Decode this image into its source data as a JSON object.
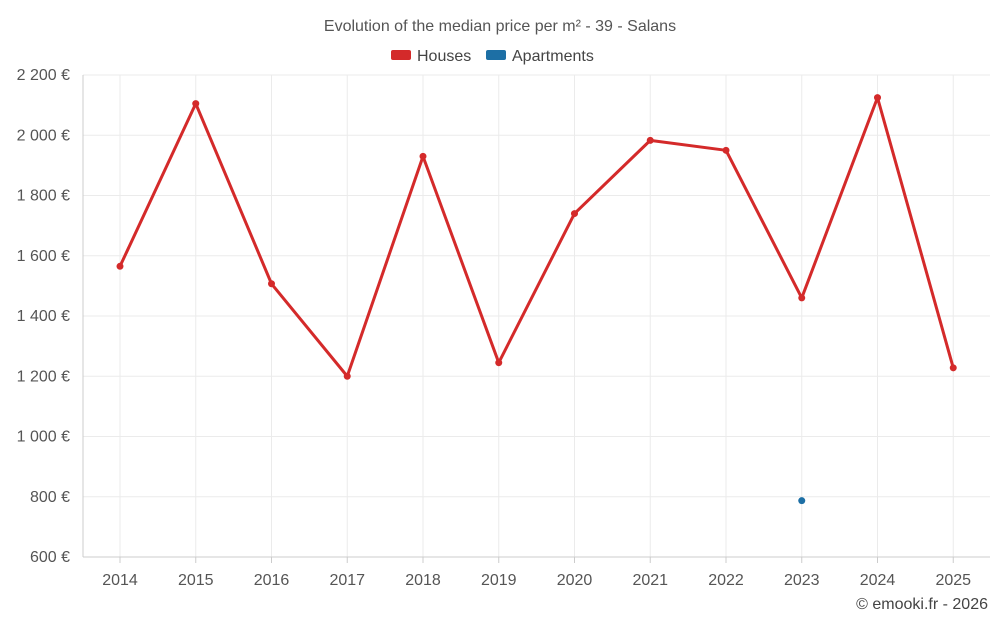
{
  "chart_data": {
    "type": "line",
    "title": "Evolution of the median price per m² - 39 - Salans",
    "xlabel": "",
    "ylabel": "",
    "categories": [
      "2014",
      "2015",
      "2016",
      "2017",
      "2018",
      "2019",
      "2020",
      "2021",
      "2022",
      "2023",
      "2024",
      "2025"
    ],
    "ylim": [
      600,
      2200
    ],
    "yticks": [
      600,
      800,
      1000,
      1200,
      1400,
      1600,
      1800,
      2000,
      2200
    ],
    "ytick_labels": [
      "600 €",
      "800 €",
      "1 000 €",
      "1 200 €",
      "1 400 €",
      "1 600 €",
      "1 800 €",
      "2 000 €",
      "2 200 €"
    ],
    "grid": true,
    "legend_position": "top-center",
    "series": [
      {
        "name": "Houses",
        "color": "#d42a2a",
        "values": [
          1565,
          2105,
          1507,
          1200,
          1930,
          1245,
          1740,
          1983,
          1950,
          1460,
          2125,
          1228
        ]
      },
      {
        "name": "Apartments",
        "color": "#1d6fa5",
        "values": [
          null,
          null,
          null,
          null,
          null,
          null,
          null,
          null,
          null,
          787,
          null,
          null
        ]
      }
    ]
  },
  "footer": {
    "copyright": "© emooki.fr - 2026"
  }
}
